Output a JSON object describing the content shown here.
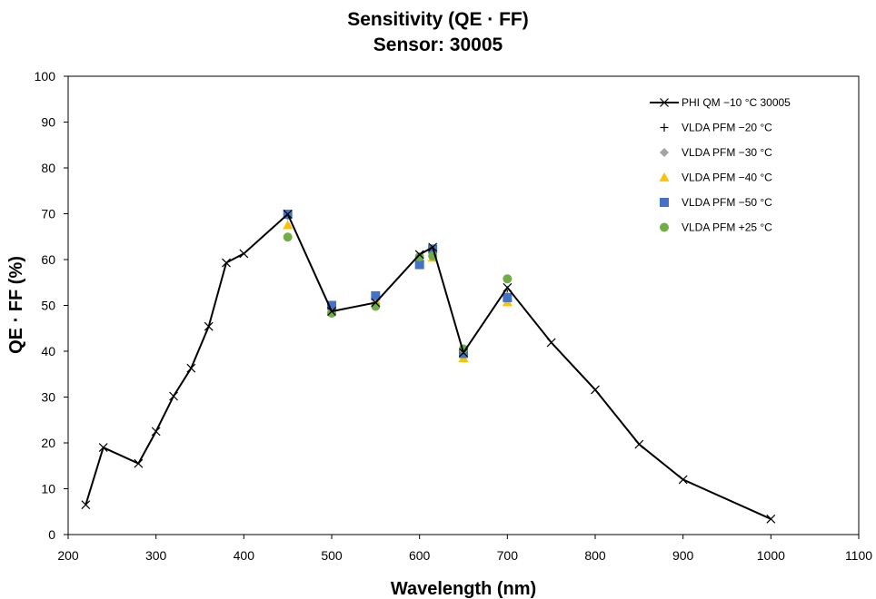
{
  "chart_data": {
    "type": "scatter",
    "title": "Sensitivity (QE · FF)",
    "subtitle": "Sensor: 30005",
    "xlabel": "Wavelength (nm)",
    "ylabel": "QE · FF (%)",
    "xlim": [
      200,
      1100
    ],
    "ylim": [
      0,
      100
    ],
    "xticks": [
      200,
      300,
      400,
      500,
      600,
      700,
      800,
      900,
      1000,
      1100
    ],
    "yticks": [
      0,
      10,
      20,
      30,
      40,
      50,
      60,
      70,
      80,
      90,
      100
    ],
    "grid": false,
    "legend_position": "top-right",
    "series": [
      {
        "name": "PHI QM −10 °C 30005",
        "marker": "x",
        "line": true,
        "color": "#000000",
        "x": [
          220,
          240,
          280,
          300,
          320,
          340,
          360,
          380,
          400,
          450,
          500,
          550,
          600,
          615,
          650,
          700,
          750,
          800,
          850,
          900,
          1000
        ],
        "y": [
          6.5,
          19,
          15.5,
          22.5,
          30.2,
          36.3,
          45.4,
          59.3,
          61.3,
          69.9,
          48.7,
          50.6,
          61.1,
          62.7,
          39.7,
          53.9,
          41.9,
          31.6,
          19.7,
          12.0,
          3.4
        ]
      },
      {
        "name": "VLDA PFM −20 °C",
        "marker": "plus",
        "line": false,
        "color": "#000000",
        "x": [
          450,
          500,
          550,
          600,
          615,
          650,
          700
        ],
        "y": [
          69.8,
          49.5,
          51.8,
          60.5,
          62.0,
          39.0,
          52.5
        ]
      },
      {
        "name": "VLDA PFM −30 °C",
        "marker": "diamond",
        "line": false,
        "color": "#a5a5a5",
        "x": [
          450,
          500,
          550,
          600,
          615,
          650,
          700
        ],
        "y": [
          69.5,
          49.5,
          51.5,
          60.0,
          61.5,
          39.2,
          52.0
        ]
      },
      {
        "name": "VLDA PFM −40 °C",
        "marker": "triangle",
        "line": false,
        "color": "#ffc000",
        "x": [
          450,
          500,
          550,
          600,
          615,
          650,
          700
        ],
        "y": [
          67.5,
          49.3,
          51.2,
          60.4,
          60.4,
          38.5,
          50.7
        ]
      },
      {
        "name": "VLDA PFM −50 °C",
        "marker": "square",
        "line": false,
        "color": "#4472c4",
        "x": [
          450,
          500,
          550,
          600,
          615,
          650,
          700
        ],
        "y": [
          69.9,
          50.0,
          52.1,
          58.9,
          62.3,
          39.5,
          51.7
        ]
      },
      {
        "name": "VLDA PFM +25 °C",
        "marker": "circle",
        "line": false,
        "color": "#70ad47",
        "x": [
          450,
          500,
          550,
          600,
          615,
          650,
          700
        ],
        "y": [
          64.9,
          48.3,
          49.8,
          60.6,
          60.8,
          40.5,
          55.8
        ]
      }
    ]
  }
}
